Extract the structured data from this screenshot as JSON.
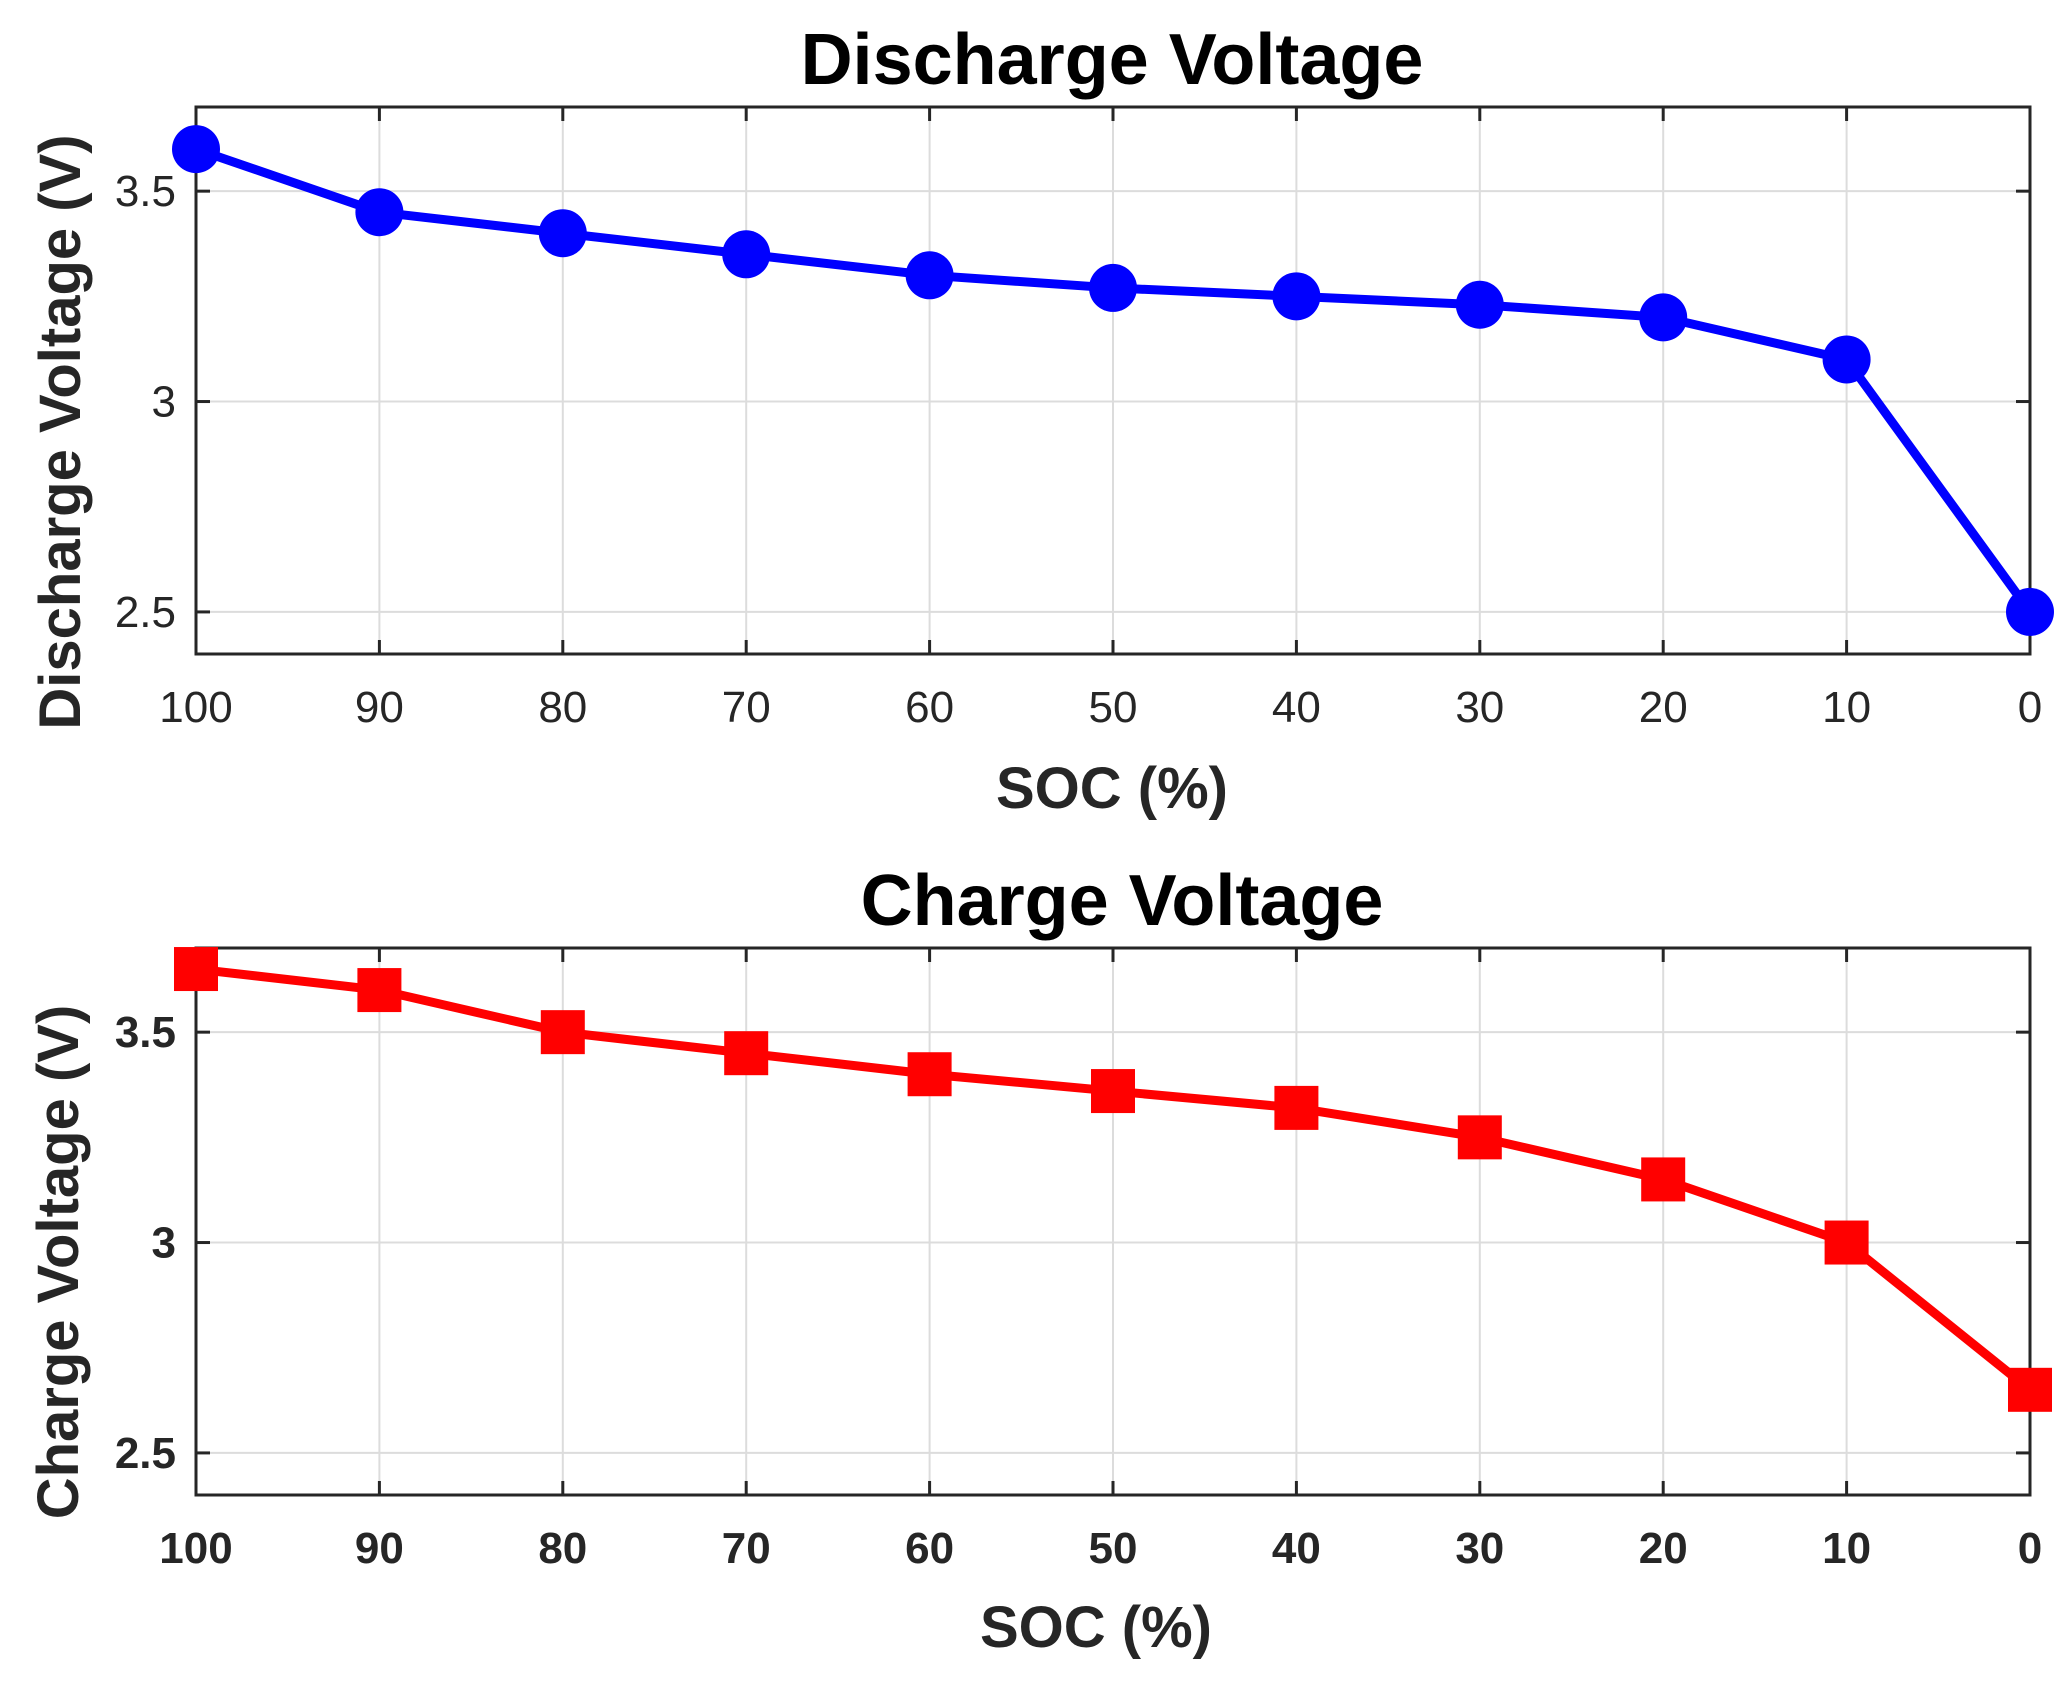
{
  "chart_data": [
    {
      "type": "line",
      "id": "discharge",
      "title": "Discharge Voltage",
      "xlabel": "SOC (%)",
      "ylabel": "Discharge Voltage (V)",
      "x": [
        100,
        90,
        80,
        70,
        60,
        50,
        40,
        30,
        20,
        10,
        0
      ],
      "values": [
        3.6,
        3.45,
        3.4,
        3.35,
        3.3,
        3.27,
        3.25,
        3.23,
        3.2,
        3.1,
        2.5
      ],
      "xlim": [
        100,
        0
      ],
      "ylim": [
        2.4,
        3.7
      ],
      "xticks": [
        "100",
        "90",
        "80",
        "70",
        "60",
        "50",
        "40",
        "30",
        "20",
        "10",
        "0"
      ],
      "yticks": [
        "2.5",
        "3",
        "3.5"
      ],
      "ytick_values": [
        2.5,
        3.0,
        3.5
      ],
      "grid": true,
      "marker": "circle",
      "color": "#0000ff",
      "tick_weight": "normal"
    },
    {
      "type": "line",
      "id": "charge",
      "title": "Charge Voltage",
      "xlabel": "SOC (%)",
      "ylabel": "Charge Voltage (V)",
      "x": [
        100,
        90,
        80,
        70,
        60,
        50,
        40,
        30,
        20,
        10,
        0
      ],
      "values": [
        3.65,
        3.6,
        3.5,
        3.45,
        3.4,
        3.36,
        3.32,
        3.25,
        3.15,
        3.0,
        2.65
      ],
      "xlim": [
        100,
        0
      ],
      "ylim": [
        2.4,
        3.7
      ],
      "xticks": [
        "100",
        "90",
        "80",
        "70",
        "60",
        "50",
        "40",
        "30",
        "20",
        "10",
        "0"
      ],
      "yticks": [
        "2.5",
        "3",
        "3.5"
      ],
      "ytick_values": [
        2.5,
        3.0,
        3.5
      ],
      "grid": true,
      "marker": "square",
      "color": "#ff0000",
      "tick_weight": "bold"
    }
  ]
}
